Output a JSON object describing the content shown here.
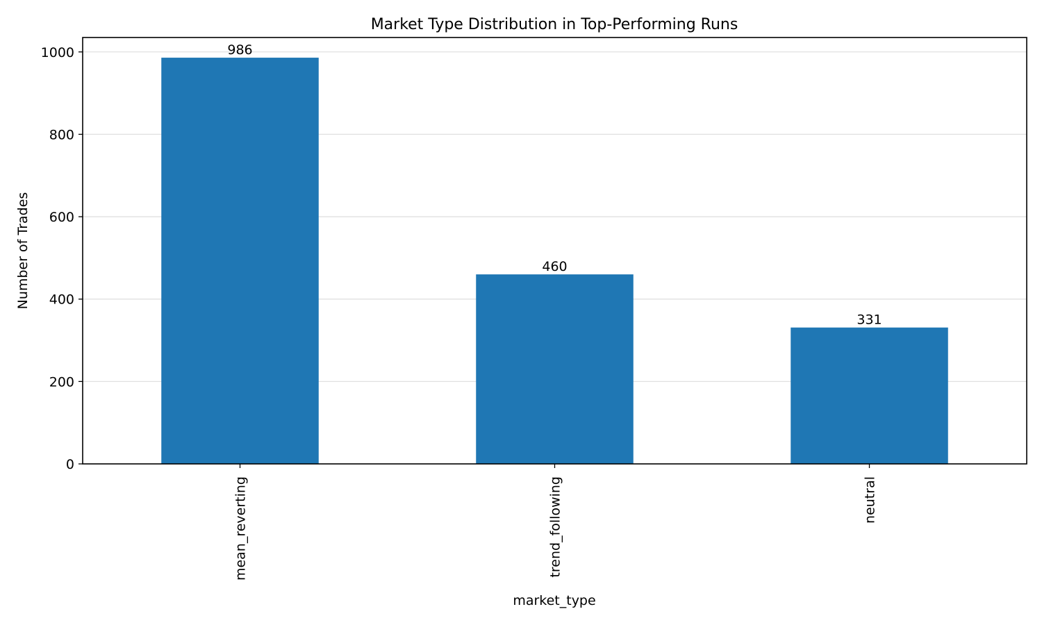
{
  "chart_data": {
    "type": "bar",
    "title": "Market Type Distribution in Top-Performing Runs",
    "xlabel": "market_type",
    "ylabel": "Number of Trades",
    "categories": [
      "mean_reverting",
      "trend_following",
      "neutral"
    ],
    "values": [
      986,
      460,
      331
    ],
    "data_labels": [
      "986",
      "460",
      "331"
    ],
    "ylim": [
      0,
      1035
    ],
    "yticks": [
      0,
      200,
      400,
      600,
      800,
      1000
    ],
    "ytick_labels": [
      "0",
      "200",
      "400",
      "600",
      "800",
      "1000"
    ],
    "grid": "y-axis only",
    "legend": "none",
    "bar_color": "#1f77b4",
    "grid_color": "#e0e0e0"
  }
}
